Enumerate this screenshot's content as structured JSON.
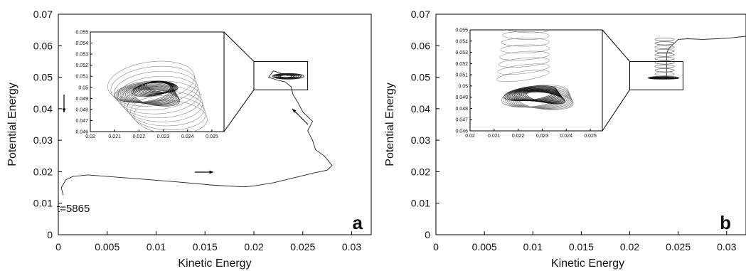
{
  "chart_data": [
    {
      "type": "line",
      "panel_label": "a",
      "xlabel": "Kinetic Energy",
      "ylabel": "Potential Energy",
      "xlim": [
        0,
        0.032
      ],
      "ylim": [
        0,
        0.07
      ],
      "xticks": [
        "0",
        "0.005",
        "0.01",
        "0.015",
        "0.02",
        "0.025",
        "0.03"
      ],
      "yticks": [
        "0",
        "0.01",
        "0.02",
        "0.03",
        "0.04",
        "0.05",
        "0.06",
        "0.07"
      ],
      "annotation": "t=5865",
      "series": [
        {
          "x": [
            0.0005,
            0.0003,
            0.0008,
            0.0015,
            0.003,
            0.005,
            0.008,
            0.012,
            0.016,
            0.019,
            0.02,
            0.022,
            0.024,
            0.026,
            0.0275,
            0.028,
            0.0272,
            0.0263,
            0.026,
            0.0255,
            0.026,
            0.025,
            0.0245,
            0.024,
            0.0238,
            0.0232,
            0.0225,
            0.0215,
            0.022,
            0.0235
          ],
          "y": [
            0.0125,
            0.015,
            0.0175,
            0.0185,
            0.019,
            0.0185,
            0.0178,
            0.0168,
            0.0157,
            0.0152,
            0.0155,
            0.0165,
            0.018,
            0.0195,
            0.0205,
            0.022,
            0.025,
            0.027,
            0.03,
            0.033,
            0.036,
            0.039,
            0.042,
            0.0445,
            0.047,
            0.0485,
            0.049,
            0.05,
            0.052,
            0.0505
          ]
        }
      ],
      "inset": {
        "xlim": [
          0.02,
          0.0255
        ],
        "ylim": [
          0.046,
          0.055
        ],
        "xticks": [
          "0.02",
          "0.021",
          "0.022",
          "0.023",
          "0.024",
          "0.025"
        ],
        "yticks": [
          "0.046",
          "0.047",
          "0.048",
          "0.049",
          "0.05",
          "0.051",
          "0.052",
          "0.053",
          "0.054",
          "0.055"
        ]
      }
    },
    {
      "type": "line",
      "panel_label": "b",
      "xlabel": "Kinetic Energy",
      "ylabel": "Potential Energy",
      "xlim": [
        0,
        0.032
      ],
      "ylim": [
        0,
        0.07
      ],
      "xticks": [
        "0",
        "0.005",
        "0.01",
        "0.015",
        "0.02",
        "0.025",
        "0.03"
      ],
      "yticks": [
        "0",
        "0.01",
        "0.02",
        "0.03",
        "0.04",
        "0.05",
        "0.06",
        "0.07"
      ],
      "series": [
        {
          "x": [
            0.032,
            0.0305,
            0.029,
            0.0275,
            0.026,
            0.025,
            0.0245,
            0.024,
            0.0238,
            0.0238,
            0.0238,
            0.0238,
            0.0238,
            0.0238,
            0.0225
          ],
          "y": [
            0.063,
            0.0625,
            0.0622,
            0.062,
            0.0622,
            0.062,
            0.0605,
            0.059,
            0.0575,
            0.056,
            0.0545,
            0.053,
            0.0515,
            0.05,
            0.0497
          ]
        }
      ],
      "inset": {
        "xlim": [
          0.02,
          0.0255
        ],
        "ylim": [
          0.046,
          0.055
        ],
        "xticks": [
          "0.02",
          "0.021",
          "0.022",
          "0.023",
          "0.024",
          "0.025"
        ],
        "yticks": [
          "0.046",
          "0.047",
          "0.048",
          "0.049",
          "0.05",
          "0.051",
          "0.052",
          "0.053",
          "0.054",
          "0.055"
        ]
      }
    }
  ]
}
